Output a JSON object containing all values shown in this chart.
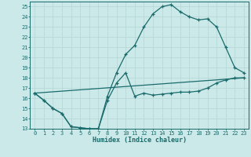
{
  "xlabel": "Humidex (Indice chaleur)",
  "bg_color": "#cce9e9",
  "line_color": "#1a6b6b",
  "grid_color": "#aad4d4",
  "xlim": [
    -0.5,
    23.5
  ],
  "ylim": [
    13,
    25.5
  ],
  "yticks": [
    13,
    14,
    15,
    16,
    17,
    18,
    19,
    20,
    21,
    22,
    23,
    24,
    25
  ],
  "xticks": [
    0,
    1,
    2,
    3,
    4,
    5,
    6,
    7,
    8,
    9,
    10,
    11,
    12,
    13,
    14,
    15,
    16,
    17,
    18,
    19,
    20,
    21,
    22,
    23
  ],
  "line1_x": [
    0,
    1,
    2,
    3,
    4,
    5,
    6,
    7,
    8,
    9,
    10,
    11,
    12,
    13,
    14,
    15,
    16,
    17,
    18,
    19,
    20,
    21,
    22,
    23
  ],
  "line1_y": [
    16.5,
    15.8,
    15.0,
    14.5,
    13.2,
    13.1,
    13.0,
    13.0,
    15.8,
    17.5,
    18.5,
    16.2,
    16.5,
    16.3,
    16.4,
    16.5,
    16.6,
    16.6,
    16.7,
    17.0,
    17.5,
    17.8,
    18.0,
    18.0
  ],
  "line2_x": [
    0,
    1,
    2,
    3,
    4,
    5,
    6,
    7,
    8,
    9,
    10,
    11,
    12,
    13,
    14,
    15,
    16,
    17,
    18,
    19,
    20,
    21,
    22,
    23
  ],
  "line2_y": [
    16.5,
    15.8,
    15.0,
    14.5,
    13.2,
    13.1,
    13.0,
    13.0,
    16.2,
    18.5,
    20.3,
    21.2,
    23.0,
    24.3,
    25.0,
    25.2,
    24.5,
    24.0,
    23.7,
    23.8,
    23.0,
    21.0,
    19.0,
    18.5
  ],
  "line3_x": [
    0,
    23
  ],
  "line3_y": [
    16.5,
    18.0
  ]
}
